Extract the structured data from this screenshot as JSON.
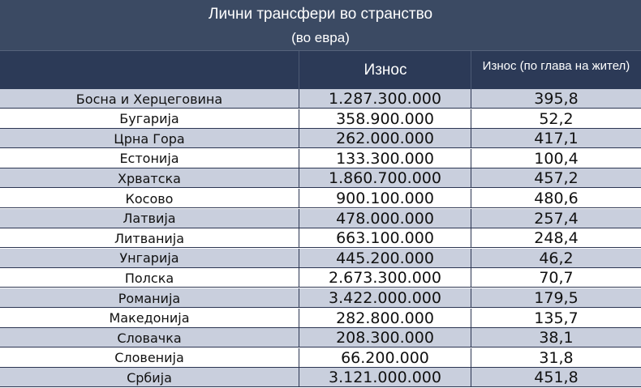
{
  "title": "Лични трансфери во странство",
  "subtitle": "(во евра)",
  "columns": {
    "country": "",
    "amount": "Износ",
    "per_capita": "Износ (по глава на жител)"
  },
  "rows": [
    {
      "country": "Босна и Херцеговина",
      "amount": "1.287.300.000",
      "per_capita": "395,8"
    },
    {
      "country": "Бугарија",
      "amount": "358.900.000",
      "per_capita": "52,2"
    },
    {
      "country": "Црна Гора",
      "amount": "262.000.000",
      "per_capita": "417,1"
    },
    {
      "country": "Естонија",
      "amount": "133.300.000",
      "per_capita": "100,4"
    },
    {
      "country": "Хрватска",
      "amount": "1.860.700.000",
      "per_capita": "457,2"
    },
    {
      "country": "Косово",
      "amount": "900.100.000",
      "per_capita": "480,6"
    },
    {
      "country": "Латвија",
      "amount": "478.000.000",
      "per_capita": "257,4"
    },
    {
      "country": "Литванија",
      "amount": "663.100.000",
      "per_capita": "248,4"
    },
    {
      "country": "Унгарија",
      "amount": "445.200.000",
      "per_capita": "46,2"
    },
    {
      "country": "Полска",
      "amount": "2.673.300.000",
      "per_capita": "70,7"
    },
    {
      "country": "Романија",
      "amount": "3.422.000.000",
      "per_capita": "179,5"
    },
    {
      "country": "Македонија",
      "amount": "282.800.000",
      "per_capita": "135,7"
    },
    {
      "country": "Словачка",
      "amount": "208.300.000",
      "per_capita": "38,1"
    },
    {
      "country": "Словенија",
      "amount": "66.200.000",
      "per_capita": "31,8"
    },
    {
      "country": "Србија",
      "amount": "3.121.000.000",
      "per_capita": "451,8"
    }
  ],
  "colors": {
    "title_band": "#3b4a63",
    "header_band": "#2c3a57",
    "alt_row": "#c9cfdd",
    "row": "#ffffff"
  }
}
